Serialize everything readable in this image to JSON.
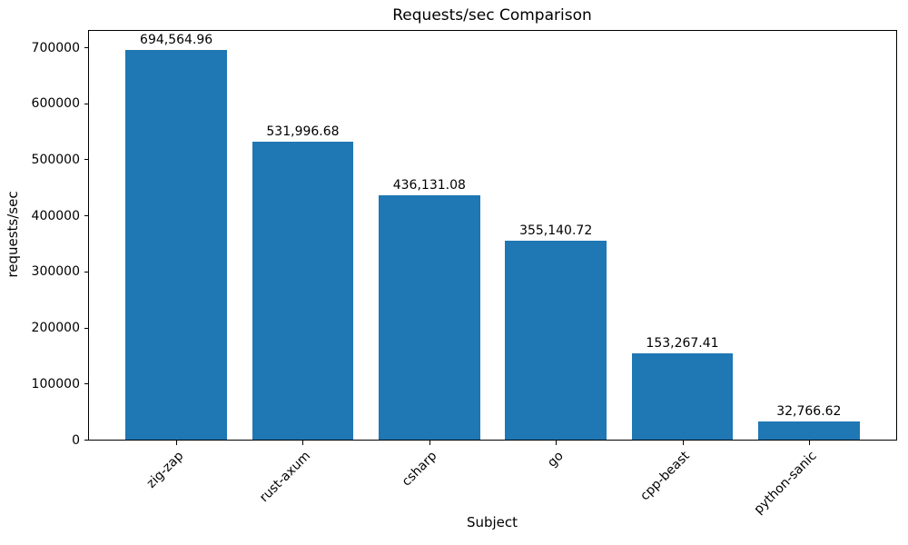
{
  "chart_data": {
    "type": "bar",
    "title": "Requests/sec Comparison",
    "xlabel": "Subject",
    "ylabel": "requests/sec",
    "categories": [
      "zig-zap",
      "rust-axum",
      "csharp",
      "go",
      "cpp-beast",
      "python-sanic"
    ],
    "values": [
      694564.96,
      531996.68,
      436131.08,
      355140.72,
      153267.41,
      32766.62
    ],
    "value_labels": [
      "694,564.96",
      "531,996.68",
      "436,131.08",
      "355,140.72",
      "153,267.41",
      "32,766.62"
    ],
    "yticks": [
      0,
      100000,
      200000,
      300000,
      400000,
      500000,
      600000,
      700000
    ],
    "ytick_labels": [
      "0",
      "100000",
      "200000",
      "300000",
      "400000",
      "500000",
      "600000",
      "700000"
    ],
    "ylim": [
      0,
      729293
    ],
    "xlim": [
      -0.69,
      5.69
    ],
    "bar_width": 0.8,
    "bar_color": "#1f77b4",
    "axis_color": "#000000",
    "text_color": "#000000",
    "background_color": "#ffffff",
    "xtick_label_rotation_deg": 45,
    "grid": "off",
    "legend": "none"
  }
}
